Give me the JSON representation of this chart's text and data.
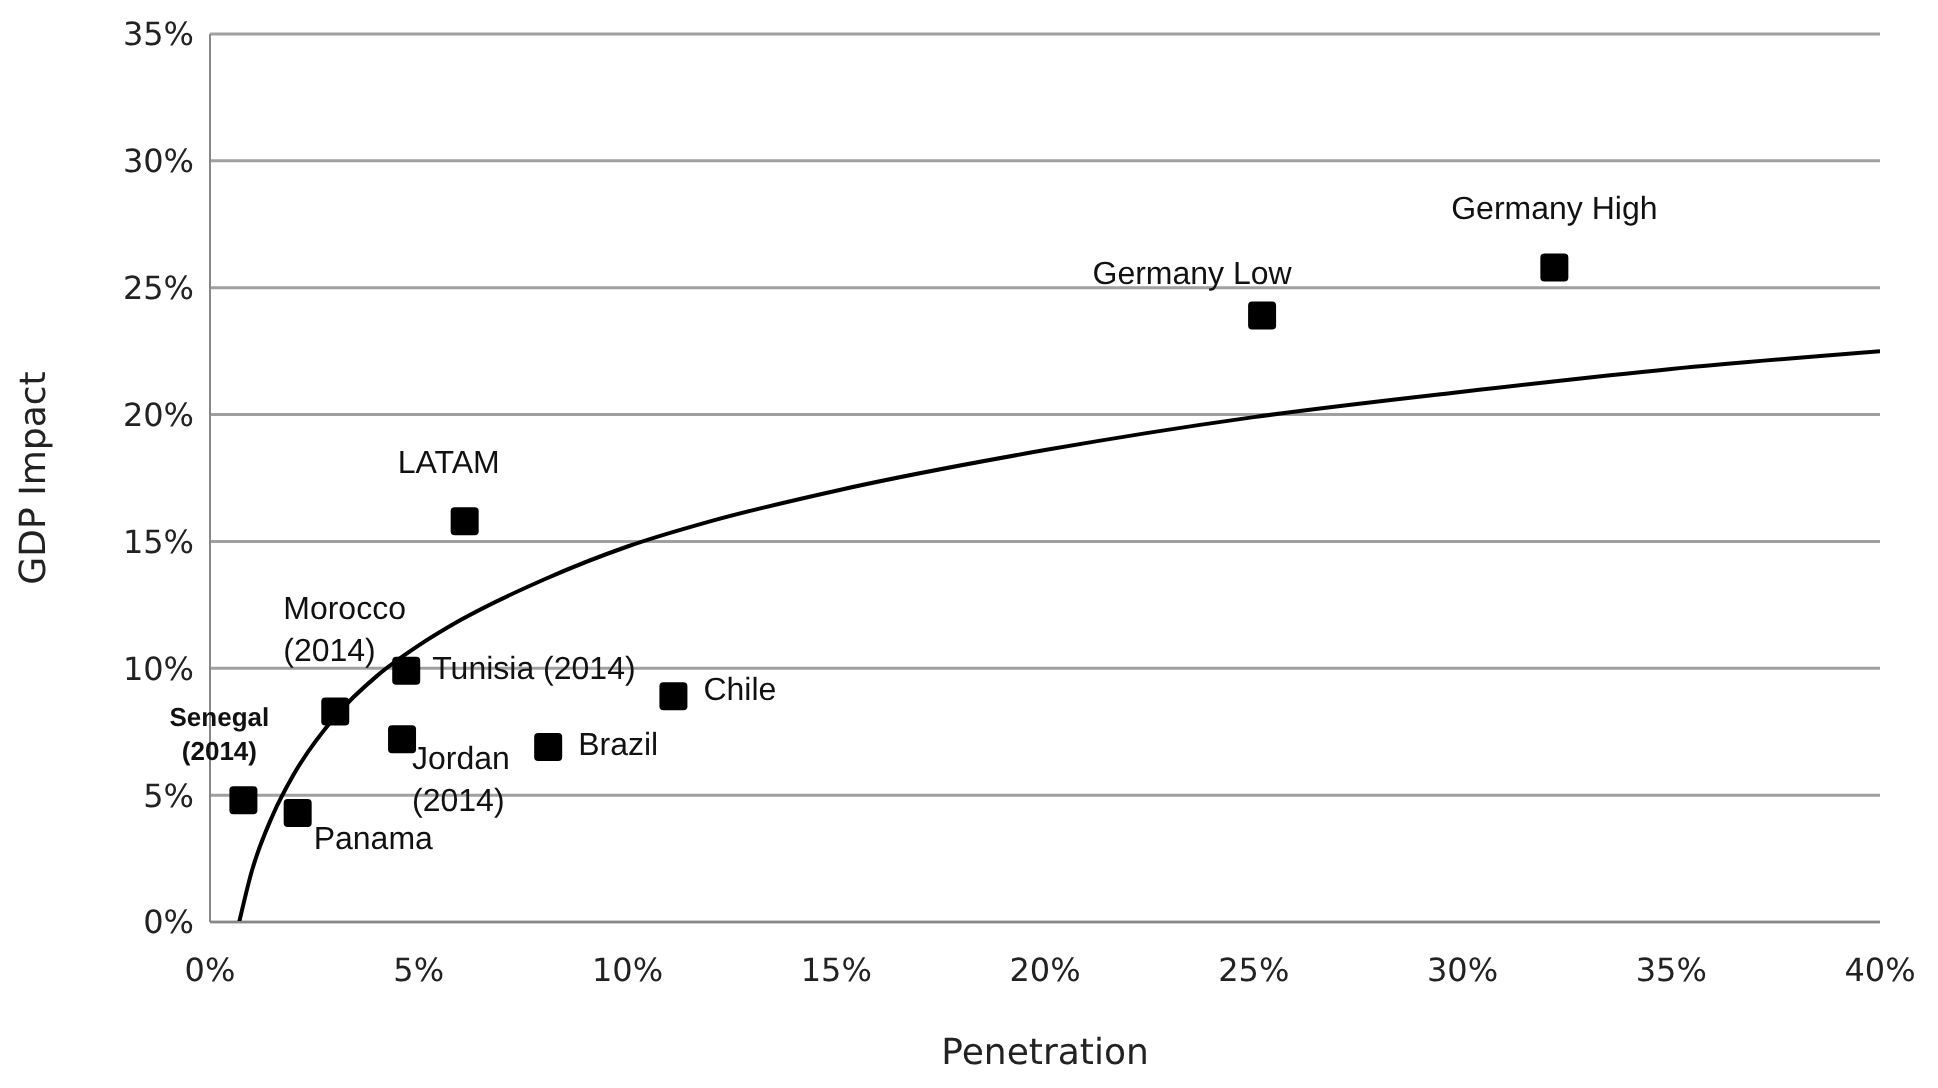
{
  "chart_data": {
    "type": "scatter",
    "xlabel": "Penetration",
    "ylabel": "GDP Impact",
    "xlim": [
      0,
      40
    ],
    "ylim": [
      0,
      35
    ],
    "xticks": [
      {
        "value": 0,
        "label": "0%"
      },
      {
        "value": 5,
        "label": "5%"
      },
      {
        "value": 10,
        "label": "10%"
      },
      {
        "value": 15,
        "label": "15%"
      },
      {
        "value": 20,
        "label": "20%"
      },
      {
        "value": 25,
        "label": "25%"
      },
      {
        "value": 30,
        "label": "30%"
      },
      {
        "value": 35,
        "label": "35%"
      },
      {
        "value": 40,
        "label": "40%"
      }
    ],
    "yticks": [
      {
        "value": 0,
        "label": "0%"
      },
      {
        "value": 5,
        "label": "5%"
      },
      {
        "value": 10,
        "label": "10%"
      },
      {
        "value": 15,
        "label": "15%"
      },
      {
        "value": 20,
        "label": "20%"
      },
      {
        "value": 25,
        "label": "25%"
      },
      {
        "value": 30,
        "label": "30%"
      },
      {
        "value": 35,
        "label": "35%"
      }
    ],
    "grid": "y",
    "marker": "square",
    "series": [
      {
        "color": "#000000",
        "x": [
          0.8,
          2.1,
          3.0,
          4.7,
          4.6,
          8.1,
          11.1,
          6.1,
          25.2,
          32.2
        ],
        "values": [
          4.8,
          4.3,
          8.3,
          9.9,
          7.2,
          6.9,
          8.9,
          15.8,
          23.9,
          25.8
        ]
      },
      {
        "type": "line",
        "color": "#000000",
        "marker": "none",
        "line_style": "solid",
        "x": [
          0.7,
          1,
          1.5,
          2,
          3,
          4,
          5,
          6,
          8,
          10,
          12,
          15,
          20,
          25,
          30,
          35,
          40
        ],
        "values": [
          0,
          2.0,
          4.2,
          5.8,
          8.1,
          9.7,
          10.9,
          11.9,
          13.5,
          14.8,
          15.8,
          17.0,
          18.6,
          19.9,
          20.9,
          21.8,
          22.5
        ]
      }
    ],
    "annotations": [
      {
        "text": "Senegal (2014)",
        "x": 0.8,
        "y": 4.8
      },
      {
        "text": "Panama",
        "x": 2.1,
        "y": 4.3
      },
      {
        "text": "Morocco (2014)",
        "x": 3.0,
        "y": 8.3
      },
      {
        "text": "Tunisia (2014)",
        "x": 4.7,
        "y": 9.9
      },
      {
        "text": "Jordan (2014)",
        "x": 4.6,
        "y": 7.2
      },
      {
        "text": "Brazil",
        "x": 8.1,
        "y": 6.9
      },
      {
        "text": "Chile",
        "x": 11.1,
        "y": 8.9
      },
      {
        "text": "LATAM",
        "x": 6.1,
        "y": 15.8
      },
      {
        "text": "Germany Low",
        "x": 25.2,
        "y": 23.9
      },
      {
        "text": "Germany High",
        "x": 32.2,
        "y": 25.8
      }
    ]
  }
}
